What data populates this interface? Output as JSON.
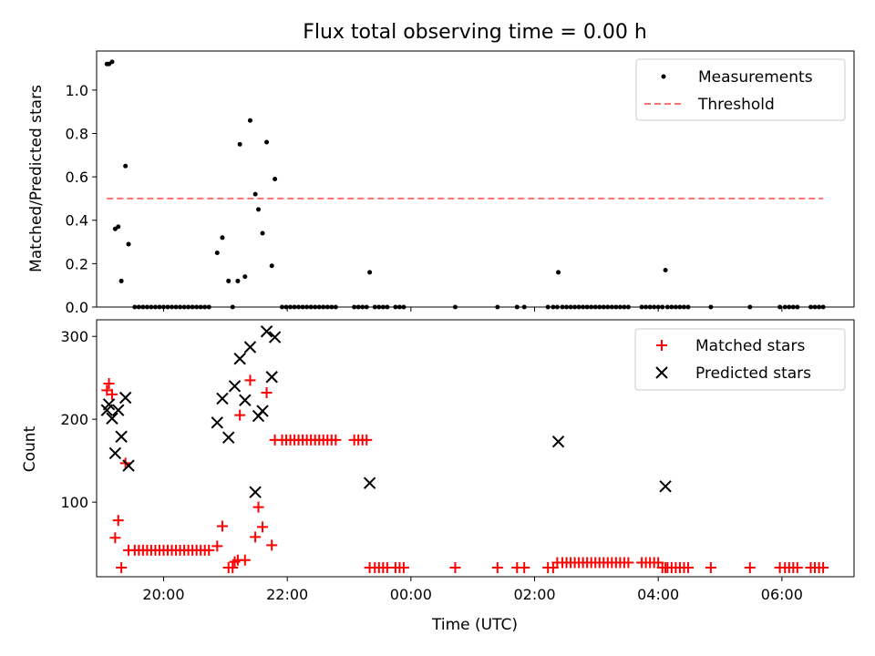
{
  "chart_data": [
    {
      "type": "scatter",
      "title": "Flux total observing time = 0.00 h",
      "xlabel": "",
      "ylabel": "Matched/Predicted stars",
      "xlim": [
        "18:55",
        "07:10"
      ],
      "ylim": [
        0,
        1.18
      ],
      "yticks": [
        0.0,
        0.2,
        0.4,
        0.6,
        0.8,
        1.0
      ],
      "ytick_labels": [
        "0.0",
        "0.2",
        "0.4",
        "0.6",
        "0.8",
        "1.0"
      ],
      "xticks": [
        "20:00",
        "22:00",
        "00:00",
        "02:00",
        "04:00",
        "06:00"
      ],
      "xtick_labels_shown": false,
      "legend_position": "top-right",
      "grid": false,
      "threshold": {
        "name": "Threshold",
        "y": 0.5,
        "x_start": "19:05",
        "x_end": "06:40",
        "color": "#ff7070",
        "style": "dashed"
      },
      "series": [
        {
          "name": "Measurements",
          "marker": "dot",
          "color": "#000000",
          "points": [
            [
              "19:05",
              1.12
            ],
            [
              "19:07",
              1.12
            ],
            [
              "19:10",
              1.13
            ],
            [
              "19:13",
              0.36
            ],
            [
              "19:16",
              0.37
            ],
            [
              "19:19",
              0.12
            ],
            [
              "19:23",
              0.65
            ],
            [
              "19:26",
              0.29
            ],
            [
              "19:32",
              0
            ],
            [
              "19:36",
              0
            ],
            [
              "19:40",
              0
            ],
            [
              "19:44",
              0
            ],
            [
              "19:48",
              0
            ],
            [
              "19:52",
              0
            ],
            [
              "19:56",
              0
            ],
            [
              "20:00",
              0
            ],
            [
              "20:04",
              0
            ],
            [
              "20:08",
              0
            ],
            [
              "20:12",
              0
            ],
            [
              "20:16",
              0
            ],
            [
              "20:20",
              0
            ],
            [
              "20:24",
              0
            ],
            [
              "20:28",
              0
            ],
            [
              "20:32",
              0
            ],
            [
              "20:36",
              0
            ],
            [
              "20:40",
              0
            ],
            [
              "20:44",
              0
            ],
            [
              "20:52",
              0.25
            ],
            [
              "20:57",
              0.32
            ],
            [
              "21:03",
              0.12
            ],
            [
              "21:07",
              0
            ],
            [
              "21:12",
              0.12
            ],
            [
              "21:14",
              0.75
            ],
            [
              "21:19",
              0.14
            ],
            [
              "21:24",
              0.86
            ],
            [
              "21:29",
              0.52
            ],
            [
              "21:32",
              0.45
            ],
            [
              "21:36",
              0.34
            ],
            [
              "21:40",
              0.76
            ],
            [
              "21:45",
              0.19
            ],
            [
              "21:48",
              0.59
            ],
            [
              "21:55",
              0
            ],
            [
              "21:59",
              0
            ],
            [
              "22:03",
              0
            ],
            [
              "22:07",
              0
            ],
            [
              "22:11",
              0
            ],
            [
              "22:15",
              0
            ],
            [
              "22:19",
              0
            ],
            [
              "22:23",
              0
            ],
            [
              "22:27",
              0
            ],
            [
              "22:31",
              0
            ],
            [
              "22:35",
              0
            ],
            [
              "22:39",
              0
            ],
            [
              "22:43",
              0
            ],
            [
              "22:47",
              0
            ],
            [
              "23:05",
              0
            ],
            [
              "23:09",
              0
            ],
            [
              "23:13",
              0
            ],
            [
              "23:17",
              0
            ],
            [
              "23:20",
              0.16
            ],
            [
              "23:25",
              0
            ],
            [
              "23:29",
              0
            ],
            [
              "23:33",
              0
            ],
            [
              "23:37",
              0
            ],
            [
              "23:45",
              0
            ],
            [
              "23:49",
              0
            ],
            [
              "23:53",
              0
            ],
            [
              "00:43",
              0
            ],
            [
              "01:24",
              0
            ],
            [
              "01:43",
              0
            ],
            [
              "01:50",
              0
            ],
            [
              "02:13",
              0
            ],
            [
              "02:18",
              0
            ],
            [
              "02:22",
              0
            ],
            [
              "02:23",
              0.16
            ],
            [
              "02:27",
              0
            ],
            [
              "02:31",
              0
            ],
            [
              "02:35",
              0
            ],
            [
              "02:39",
              0
            ],
            [
              "02:43",
              0
            ],
            [
              "02:47",
              0
            ],
            [
              "02:51",
              0
            ],
            [
              "02:55",
              0
            ],
            [
              "02:59",
              0
            ],
            [
              "03:03",
              0
            ],
            [
              "03:07",
              0
            ],
            [
              "03:11",
              0
            ],
            [
              "03:15",
              0
            ],
            [
              "03:19",
              0
            ],
            [
              "03:23",
              0
            ],
            [
              "03:27",
              0
            ],
            [
              "03:31",
              0
            ],
            [
              "03:44",
              0
            ],
            [
              "03:48",
              0
            ],
            [
              "03:52",
              0
            ],
            [
              "03:56",
              0
            ],
            [
              "04:00",
              0
            ],
            [
              "04:04",
              0
            ],
            [
              "04:07",
              0.17
            ],
            [
              "04:09",
              0
            ],
            [
              "04:13",
              0
            ],
            [
              "04:17",
              0
            ],
            [
              "04:21",
              0
            ],
            [
              "04:25",
              0
            ],
            [
              "04:29",
              0
            ],
            [
              "04:51",
              0
            ],
            [
              "05:29",
              0
            ],
            [
              "05:58",
              0
            ],
            [
              "06:03",
              0
            ],
            [
              "06:07",
              0
            ],
            [
              "06:11",
              0
            ],
            [
              "06:15",
              0
            ],
            [
              "06:28",
              0
            ],
            [
              "06:32",
              0
            ],
            [
              "06:36",
              0
            ],
            [
              "06:40",
              0
            ]
          ]
        }
      ]
    },
    {
      "type": "scatter",
      "title": "",
      "xlabel": "Time (UTC)",
      "ylabel": "Count",
      "xlim": [
        "18:55",
        "07:10"
      ],
      "ylim": [
        10,
        320
      ],
      "yticks": [
        100,
        200,
        300
      ],
      "ytick_labels": [
        "100",
        "200",
        "300"
      ],
      "xticks": [
        "20:00",
        "22:00",
        "00:00",
        "02:00",
        "04:00",
        "06:00"
      ],
      "xtick_labels": [
        "20:00",
        "22:00",
        "00:00",
        "02:00",
        "04:00",
        "06:00"
      ],
      "legend_position": "top-right",
      "grid": false,
      "series": [
        {
          "name": "Matched stars",
          "marker": "plus",
          "color": "#ff0000",
          "points": [
            [
              "19:05",
              235
            ],
            [
              "19:07",
              243
            ],
            [
              "19:10",
              230
            ],
            [
              "19:13",
              57
            ],
            [
              "19:16",
              78
            ],
            [
              "19:19",
              21
            ],
            [
              "19:23",
              147
            ],
            [
              "19:26",
              42
            ],
            [
              "19:32",
              42
            ],
            [
              "19:36",
              42
            ],
            [
              "19:40",
              42
            ],
            [
              "19:44",
              42
            ],
            [
              "19:48",
              42
            ],
            [
              "19:52",
              42
            ],
            [
              "19:56",
              42
            ],
            [
              "20:00",
              42
            ],
            [
              "20:04",
              42
            ],
            [
              "20:08",
              42
            ],
            [
              "20:12",
              42
            ],
            [
              "20:16",
              42
            ],
            [
              "20:20",
              42
            ],
            [
              "20:24",
              42
            ],
            [
              "20:28",
              42
            ],
            [
              "20:32",
              42
            ],
            [
              "20:36",
              42
            ],
            [
              "20:40",
              42
            ],
            [
              "20:44",
              42
            ],
            [
              "20:52",
              47
            ],
            [
              "20:57",
              71
            ],
            [
              "21:03",
              21
            ],
            [
              "21:07",
              21
            ],
            [
              "21:09",
              28
            ],
            [
              "21:12",
              30
            ],
            [
              "21:14",
              205
            ],
            [
              "21:19",
              30
            ],
            [
              "21:24",
              247
            ],
            [
              "21:29",
              58
            ],
            [
              "21:32",
              94
            ],
            [
              "21:36",
              70
            ],
            [
              "21:40",
              232
            ],
            [
              "21:45",
              48
            ],
            [
              "21:48",
              175
            ],
            [
              "21:55",
              175
            ],
            [
              "21:59",
              175
            ],
            [
              "22:03",
              175
            ],
            [
              "22:07",
              175
            ],
            [
              "22:11",
              175
            ],
            [
              "22:15",
              175
            ],
            [
              "22:19",
              175
            ],
            [
              "22:23",
              175
            ],
            [
              "22:27",
              175
            ],
            [
              "22:31",
              175
            ],
            [
              "22:35",
              175
            ],
            [
              "22:39",
              175
            ],
            [
              "22:43",
              175
            ],
            [
              "22:47",
              175
            ],
            [
              "23:05",
              175
            ],
            [
              "23:09",
              175
            ],
            [
              "23:13",
              175
            ],
            [
              "23:17",
              175
            ],
            [
              "23:20",
              21
            ],
            [
              "23:25",
              21
            ],
            [
              "23:29",
              21
            ],
            [
              "23:33",
              21
            ],
            [
              "23:37",
              21
            ],
            [
              "23:45",
              21
            ],
            [
              "23:49",
              21
            ],
            [
              "23:53",
              21
            ],
            [
              "00:43",
              21
            ],
            [
              "01:24",
              21
            ],
            [
              "01:43",
              21
            ],
            [
              "01:50",
              21
            ],
            [
              "02:13",
              21
            ],
            [
              "02:18",
              21
            ],
            [
              "02:22",
              27
            ],
            [
              "02:27",
              27
            ],
            [
              "02:31",
              27
            ],
            [
              "02:35",
              27
            ],
            [
              "02:39",
              27
            ],
            [
              "02:43",
              27
            ],
            [
              "02:47",
              27
            ],
            [
              "02:51",
              27
            ],
            [
              "02:55",
              27
            ],
            [
              "02:59",
              27
            ],
            [
              "03:03",
              27
            ],
            [
              "03:07",
              27
            ],
            [
              "03:11",
              27
            ],
            [
              "03:15",
              27
            ],
            [
              "03:19",
              27
            ],
            [
              "03:23",
              27
            ],
            [
              "03:27",
              27
            ],
            [
              "03:31",
              27
            ],
            [
              "03:44",
              27
            ],
            [
              "03:48",
              27
            ],
            [
              "03:52",
              27
            ],
            [
              "03:56",
              27
            ],
            [
              "04:00",
              27
            ],
            [
              "04:04",
              21
            ],
            [
              "04:07",
              21
            ],
            [
              "04:09",
              21
            ],
            [
              "04:13",
              21
            ],
            [
              "04:17",
              21
            ],
            [
              "04:21",
              21
            ],
            [
              "04:25",
              21
            ],
            [
              "04:29",
              21
            ],
            [
              "04:51",
              21
            ],
            [
              "05:29",
              21
            ],
            [
              "05:58",
              21
            ],
            [
              "06:03",
              21
            ],
            [
              "06:07",
              21
            ],
            [
              "06:11",
              21
            ],
            [
              "06:15",
              21
            ],
            [
              "06:28",
              21
            ],
            [
              "06:32",
              21
            ],
            [
              "06:36",
              21
            ],
            [
              "06:40",
              21
            ]
          ]
        },
        {
          "name": "Predicted stars",
          "marker": "x",
          "color": "#000000",
          "points": [
            [
              "19:05",
              211
            ],
            [
              "19:07",
              218
            ],
            [
              "19:10",
              201
            ],
            [
              "19:13",
              159
            ],
            [
              "19:16",
              211
            ],
            [
              "19:19",
              179
            ],
            [
              "19:23",
              226
            ],
            [
              "19:26",
              144
            ],
            [
              "20:52",
              196
            ],
            [
              "20:57",
              225
            ],
            [
              "21:03",
              178
            ],
            [
              "21:09",
              240
            ],
            [
              "21:14",
              273
            ],
            [
              "21:19",
              223
            ],
            [
              "21:24",
              287
            ],
            [
              "21:29",
              112
            ],
            [
              "21:32",
              204
            ],
            [
              "21:36",
              210
            ],
            [
              "21:40",
              306
            ],
            [
              "21:45",
              251
            ],
            [
              "21:48",
              299
            ],
            [
              "23:20",
              123
            ],
            [
              "02:23",
              173
            ],
            [
              "04:07",
              119
            ]
          ]
        }
      ]
    }
  ]
}
